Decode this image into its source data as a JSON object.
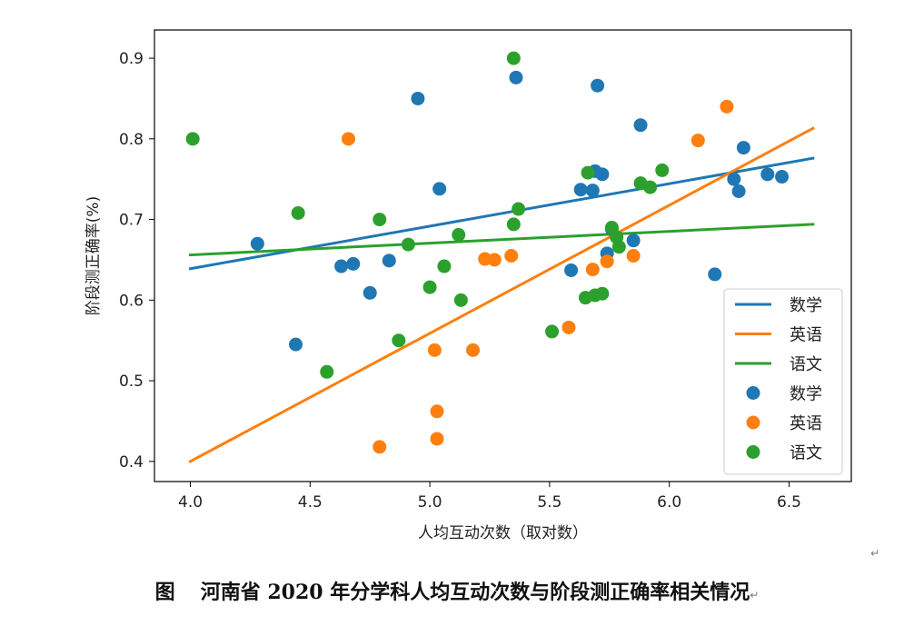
{
  "caption": {
    "figure_label": "图",
    "text": "河南省 2020 年分学科人均互动次数与阶段测正确率相关情况"
  },
  "paragraph_mark": "↵",
  "chart_data": {
    "type": "scatter",
    "xlabel": "人均互动次数（取对数）",
    "ylabel": "阶段测正确率(%)",
    "xlim": [
      3.85,
      6.76
    ],
    "ylim": [
      0.375,
      0.935
    ],
    "xticks": [
      "4.0",
      "4.5",
      "5.0",
      "5.5",
      "6.0",
      "6.5"
    ],
    "yticks": [
      "0.4",
      "0.5",
      "0.6",
      "0.7",
      "0.8",
      "0.9"
    ],
    "legend_position": "lower-right",
    "series": [
      {
        "name": "数学",
        "color": "#1f77b4",
        "line": [
          [
            4.0,
            0.639
          ],
          [
            6.6,
            0.776
          ]
        ],
        "points": [
          [
            4.28,
            0.67
          ],
          [
            4.44,
            0.545
          ],
          [
            4.63,
            0.642
          ],
          [
            4.68,
            0.645
          ],
          [
            4.75,
            0.609
          ],
          [
            4.83,
            0.649
          ],
          [
            4.95,
            0.85
          ],
          [
            5.04,
            0.738
          ],
          [
            5.36,
            0.876
          ],
          [
            5.59,
            0.637
          ],
          [
            5.63,
            0.737
          ],
          [
            5.68,
            0.736
          ],
          [
            5.69,
            0.76
          ],
          [
            5.7,
            0.866
          ],
          [
            5.72,
            0.756
          ],
          [
            5.74,
            0.658
          ],
          [
            5.76,
            0.688
          ],
          [
            5.85,
            0.674
          ],
          [
            5.88,
            0.817
          ],
          [
            6.19,
            0.632
          ],
          [
            6.27,
            0.75
          ],
          [
            6.29,
            0.735
          ],
          [
            6.31,
            0.789
          ],
          [
            6.41,
            0.756
          ],
          [
            6.47,
            0.753
          ]
        ]
      },
      {
        "name": "英语",
        "color": "#ff7f0e",
        "line": [
          [
            4.0,
            0.4
          ],
          [
            6.6,
            0.813
          ]
        ],
        "points": [
          [
            4.66,
            0.8
          ],
          [
            4.79,
            0.418
          ],
          [
            5.02,
            0.538
          ],
          [
            5.03,
            0.462
          ],
          [
            5.03,
            0.428
          ],
          [
            5.18,
            0.538
          ],
          [
            5.23,
            0.651
          ],
          [
            5.27,
            0.65
          ],
          [
            5.34,
            0.655
          ],
          [
            5.58,
            0.566
          ],
          [
            5.68,
            0.638
          ],
          [
            5.74,
            0.648
          ],
          [
            5.85,
            0.655
          ],
          [
            6.12,
            0.798
          ],
          [
            6.24,
            0.84
          ]
        ]
      },
      {
        "name": "语文",
        "color": "#2ca02c",
        "line": [
          [
            4.0,
            0.656
          ],
          [
            6.6,
            0.694
          ]
        ],
        "points": [
          [
            4.01,
            0.8
          ],
          [
            4.45,
            0.708
          ],
          [
            4.57,
            0.511
          ],
          [
            4.79,
            0.7
          ],
          [
            4.87,
            0.55
          ],
          [
            4.91,
            0.669
          ],
          [
            5.0,
            0.616
          ],
          [
            5.06,
            0.642
          ],
          [
            5.12,
            0.681
          ],
          [
            5.13,
            0.6
          ],
          [
            5.35,
            0.9
          ],
          [
            5.35,
            0.694
          ],
          [
            5.37,
            0.713
          ],
          [
            5.51,
            0.561
          ],
          [
            5.65,
            0.603
          ],
          [
            5.66,
            0.758
          ],
          [
            5.69,
            0.606
          ],
          [
            5.72,
            0.608
          ],
          [
            5.76,
            0.69
          ],
          [
            5.78,
            0.678
          ],
          [
            5.79,
            0.666
          ],
          [
            5.88,
            0.745
          ],
          [
            5.92,
            0.74
          ],
          [
            5.97,
            0.761
          ]
        ]
      }
    ]
  }
}
